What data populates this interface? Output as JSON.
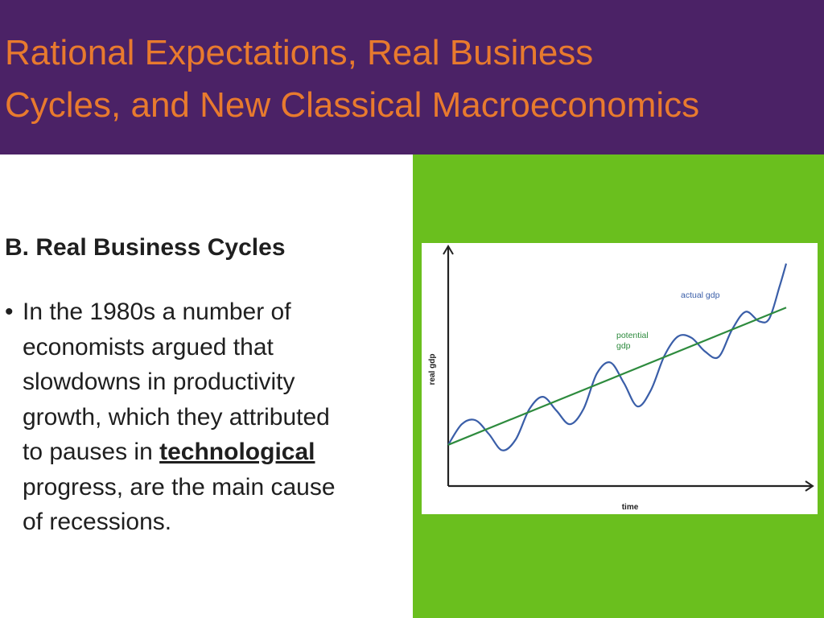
{
  "header": {
    "title_line1": "Rational Expectations, Real Business",
    "title_line2": "Cycles, and New Classical Macroeconomics"
  },
  "content": {
    "subtitle": "B. Real Business Cycles",
    "bullet_marker": "•",
    "bullet_lines": [
      "In the 1980s a number of",
      "economists argued that",
      "slowdowns in productivity",
      "growth, which they attributed"
    ],
    "bullet_line5_prefix": "to pauses in ",
    "bullet_line5_emphasis": "technological",
    "bullet_line6": "progress, are the main cause",
    "bullet_line7": "of recessions."
  },
  "colors": {
    "header_bg": "#4b2266",
    "title_text": "#e87a2e",
    "side_panel": "#6abf1e",
    "actual_line": "#3a5ea8",
    "potential_line": "#2e8b3e"
  },
  "chart_data": {
    "type": "line",
    "xlabel": "time",
    "ylabel": "real gdp",
    "grid": false,
    "series": [
      {
        "name": "actual gdp",
        "x": [
          0.0,
          0.04,
          0.08,
          0.12,
          0.16,
          0.2,
          0.24,
          0.28,
          0.32,
          0.36,
          0.4,
          0.44,
          0.48,
          0.52,
          0.56,
          0.6,
          0.64,
          0.68,
          0.72,
          0.76,
          0.8,
          0.84,
          0.88,
          0.92,
          0.95,
          0.98,
          1.0
        ],
        "y": [
          0.3,
          0.45,
          0.48,
          0.38,
          0.26,
          0.34,
          0.56,
          0.65,
          0.55,
          0.45,
          0.56,
          0.82,
          0.9,
          0.75,
          0.58,
          0.7,
          0.95,
          1.09,
          1.08,
          0.98,
          0.94,
          1.14,
          1.27,
          1.2,
          1.22,
          1.45,
          1.62
        ]
      },
      {
        "name": "potential gdp",
        "x": [
          0.0,
          1.0
        ],
        "y": [
          0.3,
          1.3
        ]
      }
    ]
  }
}
